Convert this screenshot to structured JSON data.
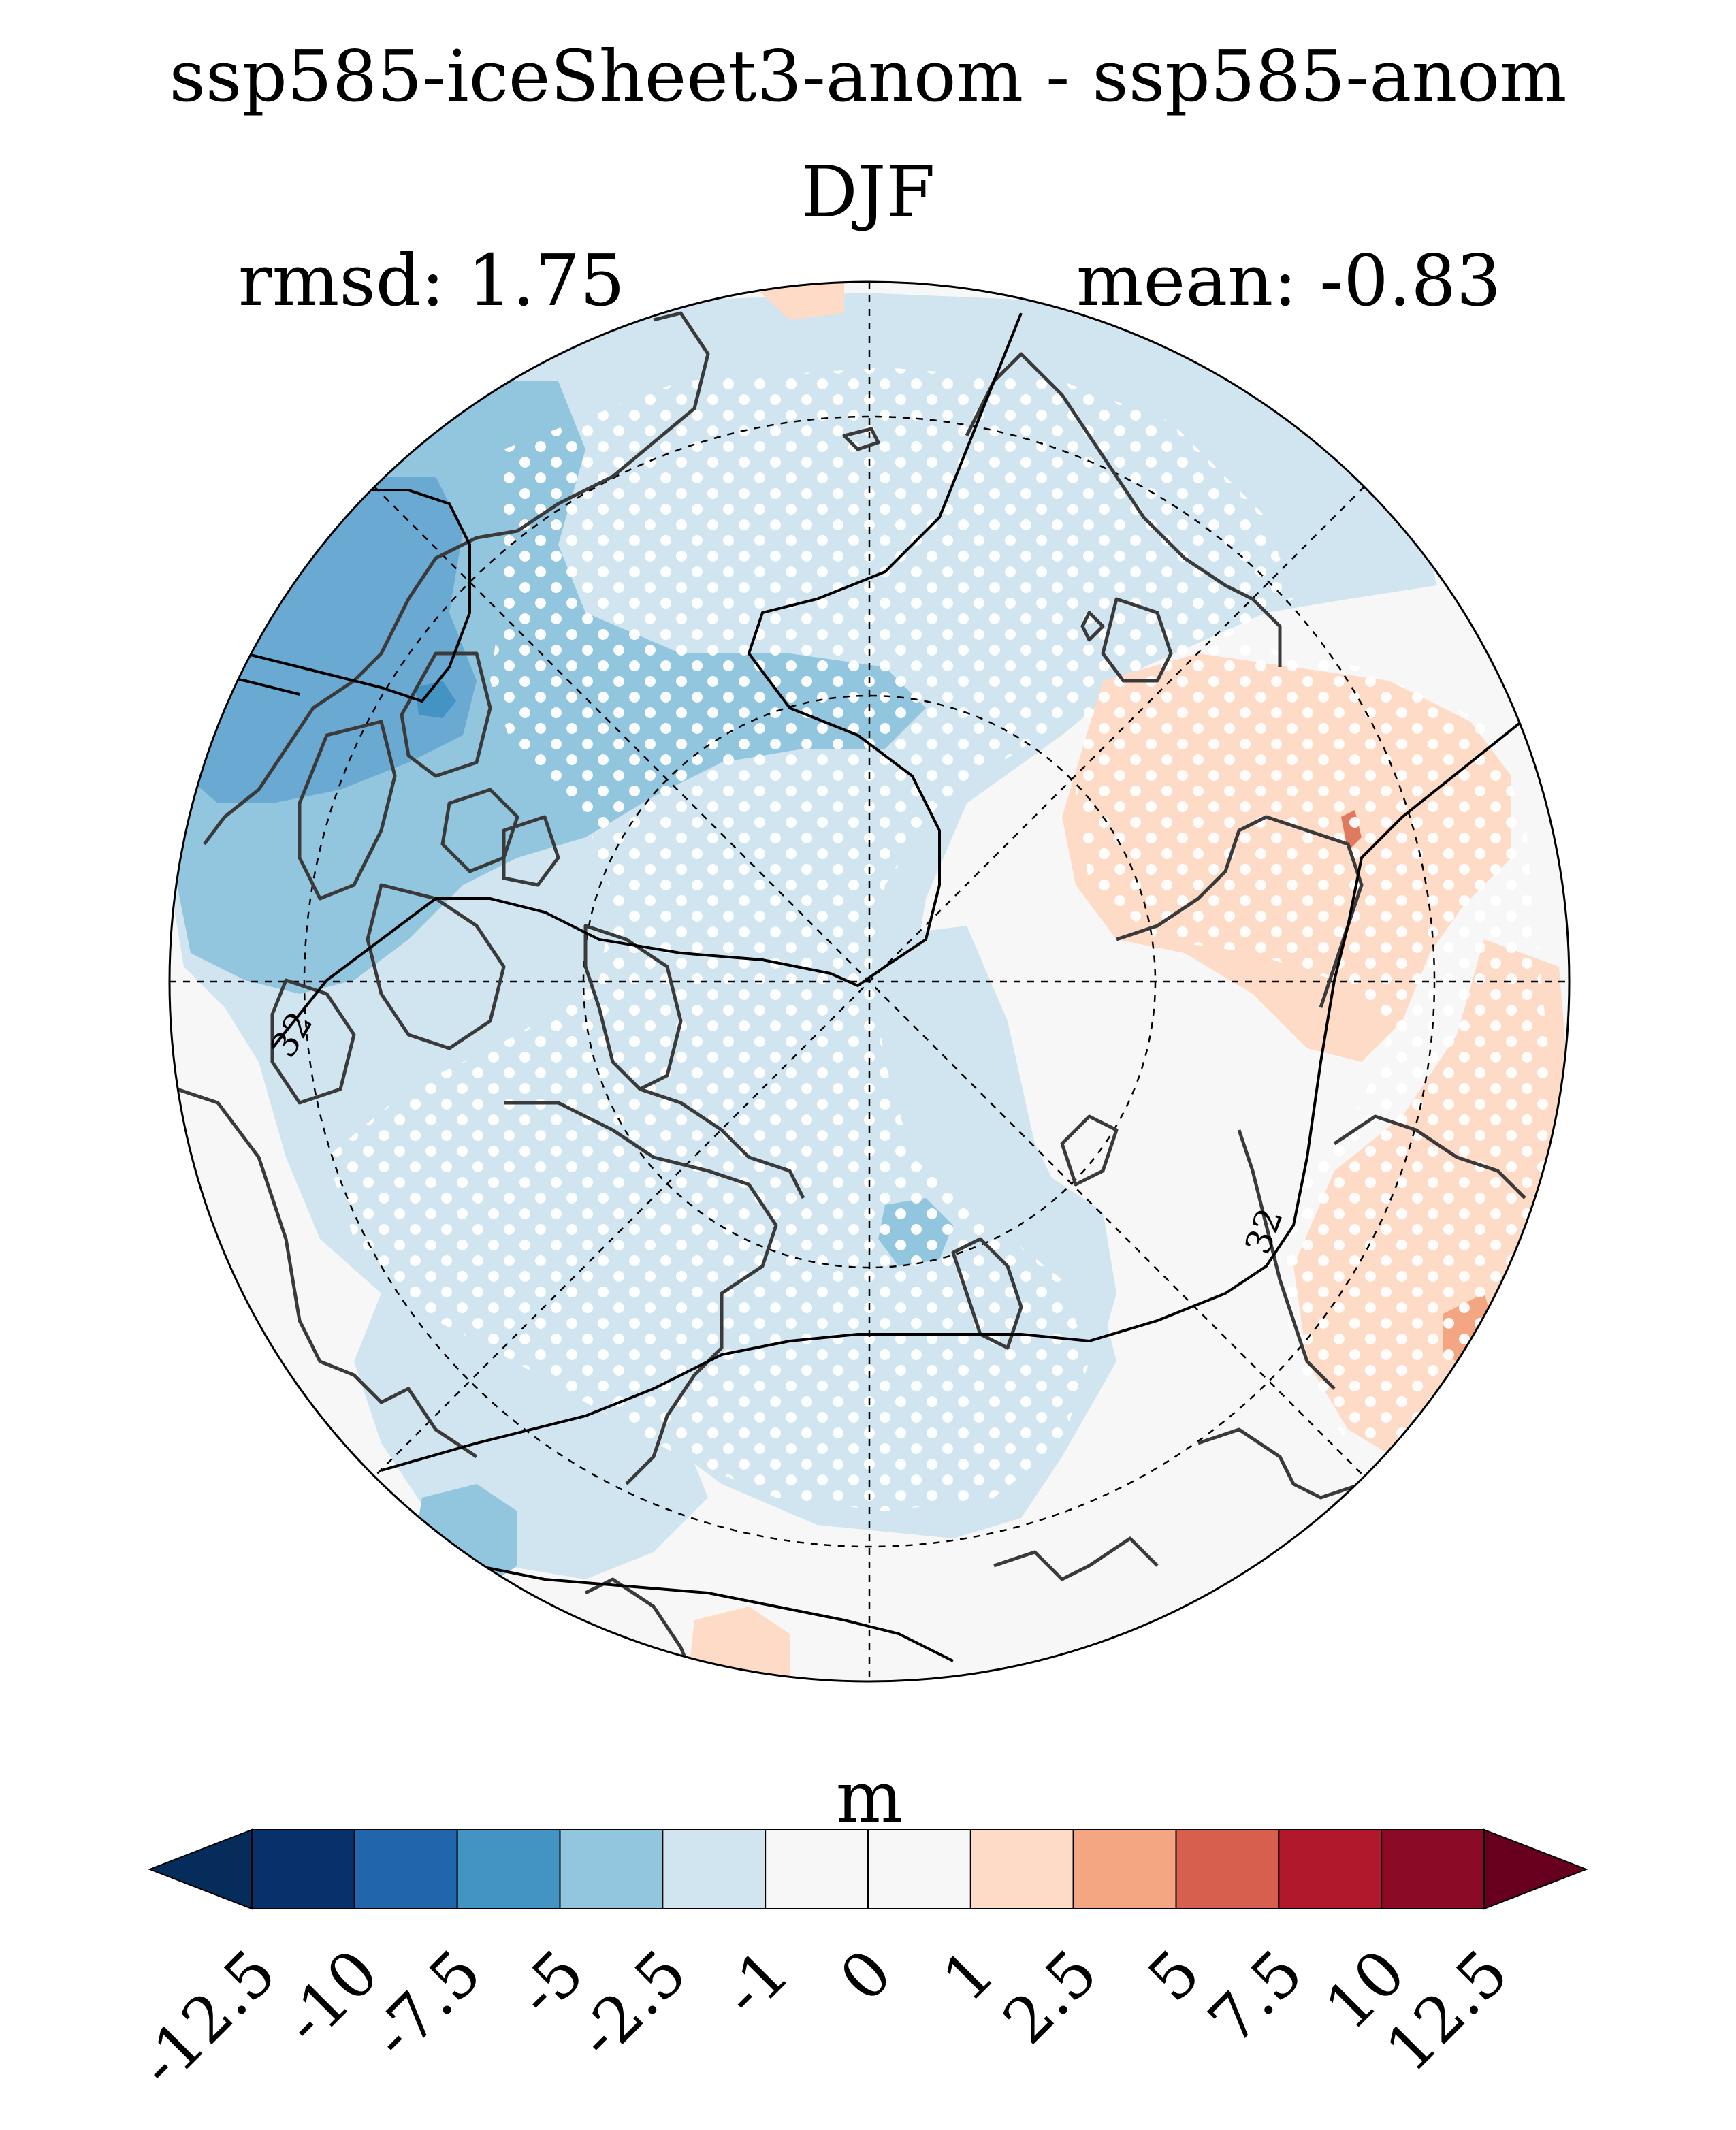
{
  "title": "ssp585-iceSheet3-anom - ssp585-anom",
  "season": "DJF",
  "stats": {
    "rmsd": "rmsd: 1.75",
    "mean": "mean: -0.83"
  },
  "colorbar": {
    "unit": "m",
    "ticks": [
      "-12.5",
      "-10",
      "-7.5",
      "-5",
      "-2.5",
      "-1",
      "0",
      "1",
      "2.5",
      "5",
      "7.5",
      "10",
      "12.5"
    ],
    "colors": [
      "#052c5a",
      "#08306b",
      "#2166ac",
      "#4393c3",
      "#92c5de",
      "#d1e5f0",
      "#f7f7f7",
      "#f7f7f7",
      "#fddbc7",
      "#f4a582",
      "#d6604d",
      "#b2182b",
      "#8b0a26",
      "#67001f"
    ]
  },
  "map": {
    "contour_labels": [
      "32",
      "32"
    ]
  }
}
